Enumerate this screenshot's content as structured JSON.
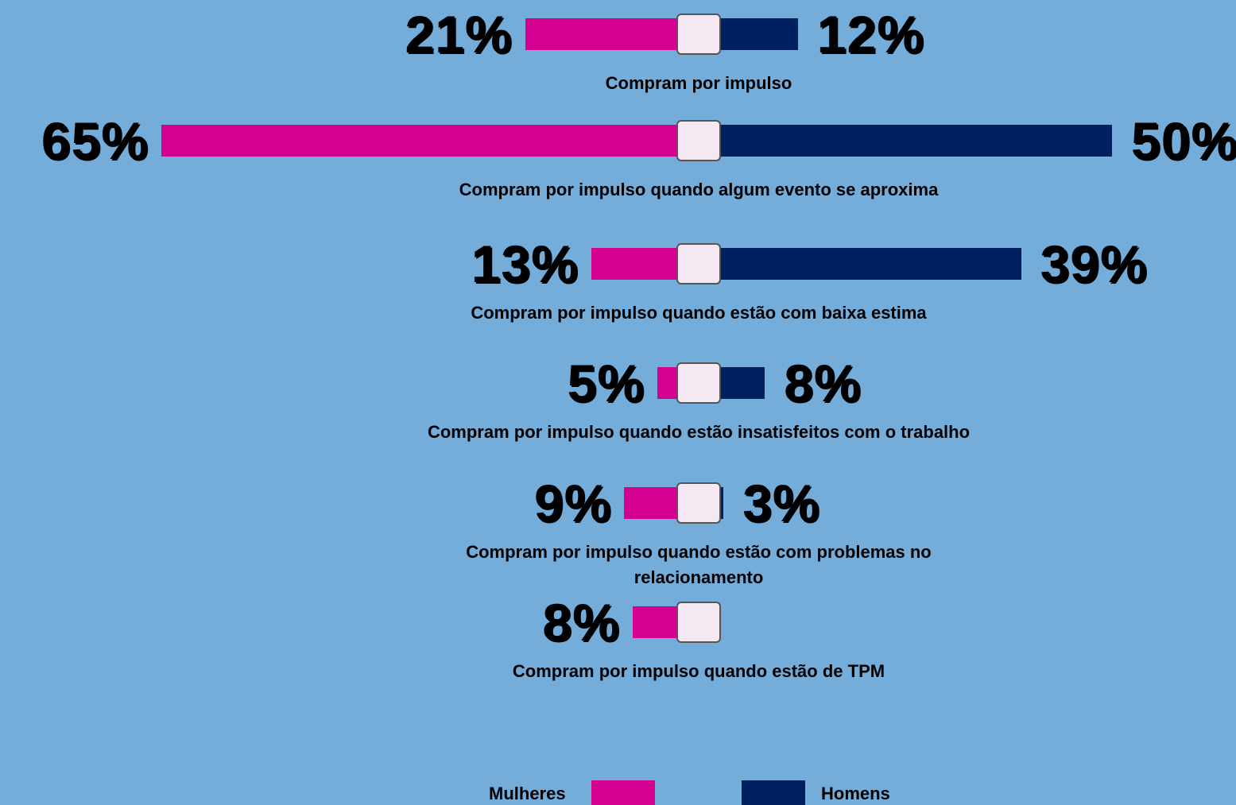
{
  "chart_data": {
    "type": "butterfly-bar",
    "categories": [
      "Compram por impulso",
      "Compram por impulso quando algum evento se aproxima",
      "Compram por impulso quando estão com baixa estima",
      "Compram por impulso quando estão insatisfeitos com o trabalho",
      "Compram por impulso quando estão com problemas no relacionamento",
      "Compram por impulso quando estão de TPM"
    ],
    "series": [
      {
        "name": "Mulheres",
        "color": "#d4008f",
        "values": [
          21,
          65,
          13,
          5,
          9,
          8
        ],
        "value_labels": [
          "21%",
          "65%",
          "13%",
          "5%",
          "9%",
          "8%"
        ]
      },
      {
        "name": "Homens",
        "color": "#002060",
        "values": [
          12,
          50,
          39,
          8,
          3,
          null
        ],
        "value_labels": [
          "12%",
          "50%",
          "39%",
          "8%",
          "3%",
          null
        ]
      }
    ]
  }
}
